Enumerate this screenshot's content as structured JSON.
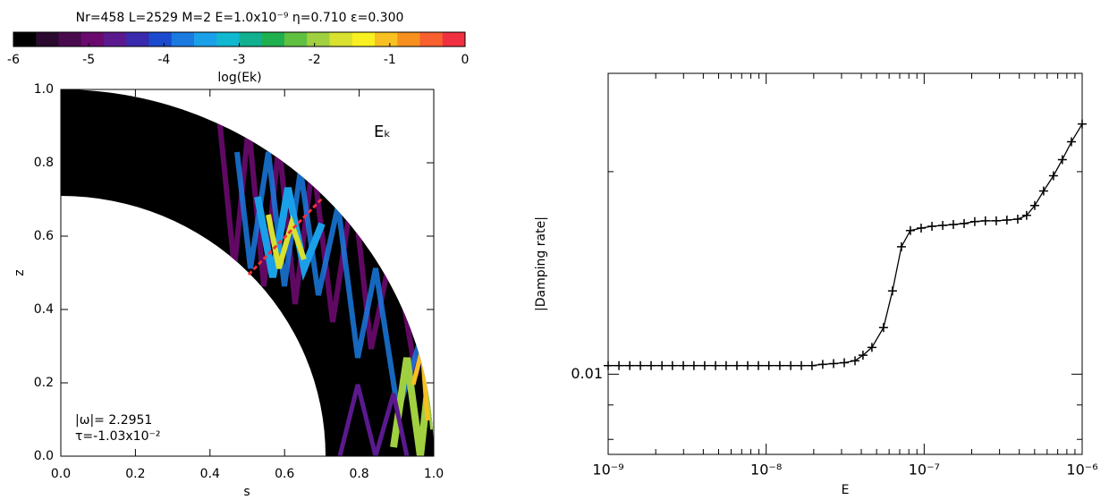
{
  "chart_data": [
    {
      "type": "heatmap",
      "title": "Nr=458 L=2529 M=2 E=1.0x10⁻⁹ η=0.710 ε=0.300",
      "colorbar": {
        "label": "log(Ek)",
        "clim": [
          -6,
          0
        ],
        "ticks": [
          -6,
          -5,
          -4,
          -3,
          -2,
          -1,
          0
        ],
        "colors": [
          "#000000",
          "#2a0a2e",
          "#4a0a4e",
          "#6a0a6e",
          "#5a1a8e",
          "#3a2aae",
          "#1a4ace",
          "#1a7ae0",
          "#1aa0e8",
          "#10b8d0",
          "#10b090",
          "#20b050",
          "#60c040",
          "#a0d040",
          "#d8e030",
          "#f8f020",
          "#f8c020",
          "#f89020",
          "#f86030",
          "#f03040"
        ]
      },
      "xlabel": "s",
      "ylabel": "z",
      "xlim": [
        0,
        1
      ],
      "ylim": [
        0,
        1
      ],
      "xticks": [
        {
          "value": 0,
          "label": "0.0"
        },
        {
          "value": 0.2,
          "label": "0.2"
        },
        {
          "value": 0.4,
          "label": "0.4"
        },
        {
          "value": 0.6,
          "label": "0.6"
        },
        {
          "value": 0.8,
          "label": "0.8"
        },
        {
          "value": 1,
          "label": "1.0"
        }
      ],
      "yticks": [
        {
          "value": 0,
          "label": "0.0"
        },
        {
          "value": 0.2,
          "label": "0.2"
        },
        {
          "value": 0.4,
          "label": "0.4"
        },
        {
          "value": 0.6,
          "label": "0.6"
        },
        {
          "value": 0.8,
          "label": "0.8"
        },
        {
          "value": 1,
          "label": "1.0"
        }
      ],
      "annotations": [
        "Eₖ",
        "|ω|= 2.2951",
        "τ=-1.03x10⁻²"
      ]
    },
    {
      "type": "line",
      "xlabel": "E",
      "ylabel": "|Damping rate|",
      "xlog": true,
      "ylog": true,
      "xlim": [
        1e-09,
        1e-06
      ],
      "ylim": [
        0.0076,
        0.028
      ],
      "xticks": [
        {
          "value": 1e-09,
          "label": "10⁻⁹"
        },
        {
          "value": 1e-08,
          "label": "10⁻⁸"
        },
        {
          "value": 1e-07,
          "label": "10⁻⁷"
        },
        {
          "value": 1e-06,
          "label": "10⁻⁶"
        }
      ],
      "xminorticks": [
        2e-09,
        3e-09,
        4e-09,
        5e-09,
        6e-09,
        7e-09,
        8e-09,
        9e-09,
        2e-08,
        3e-08,
        4e-08,
        5e-08,
        6e-08,
        7e-08,
        8e-08,
        9e-08,
        2e-07,
        3e-07,
        4e-07,
        5e-07,
        6e-07,
        7e-07,
        8e-07,
        9e-07
      ],
      "yticks": [
        0.01
      ],
      "yminorticks": [
        0.008,
        0.009,
        0.02
      ],
      "marker": "+",
      "color": "#000000",
      "x": [
        1e-09,
        1.17e-09,
        1.37e-09,
        1.6e-09,
        1.87e-09,
        2.19e-09,
        2.55e-09,
        2.99e-09,
        3.49e-09,
        4.08e-09,
        4.78e-09,
        5.58e-09,
        6.53e-09,
        7.64e-09,
        8.93e-09,
        1.04e-08,
        1.22e-08,
        1.43e-08,
        1.67e-08,
        1.95e-08,
        2.28e-08,
        2.67e-08,
        3.12e-08,
        3.65e-08,
        4.1e-08,
        4.67e-08,
        5.53e-08,
        6.3e-08,
        7.18e-08,
        8.18e-08,
        9.57e-08,
        1.12e-07,
        1.31e-07,
        1.53e-07,
        1.79e-07,
        2.09e-07,
        2.44e-07,
        2.86e-07,
        3.34e-07,
        3.91e-07,
        4.45e-07,
        5.01e-07,
        5.7e-07,
        6.58e-07,
        7.49e-07,
        8.55e-07,
        1e-06
      ],
      "values": [
        0.0103,
        0.0103,
        0.0103,
        0.0103,
        0.0103,
        0.0103,
        0.0103,
        0.0103,
        0.0103,
        0.0103,
        0.0103,
        0.0103,
        0.0103,
        0.0103,
        0.0103,
        0.0103,
        0.0103,
        0.0103,
        0.0103,
        0.0103,
        0.01034,
        0.01037,
        0.0104,
        0.01047,
        0.01067,
        0.01096,
        0.01173,
        0.0133,
        0.01547,
        0.01635,
        0.01649,
        0.01659,
        0.01664,
        0.01669,
        0.01675,
        0.01686,
        0.0169,
        0.0169,
        0.01695,
        0.017,
        0.01722,
        0.01781,
        0.01872,
        0.01972,
        0.02084,
        0.02215,
        0.02354
      ]
    }
  ]
}
